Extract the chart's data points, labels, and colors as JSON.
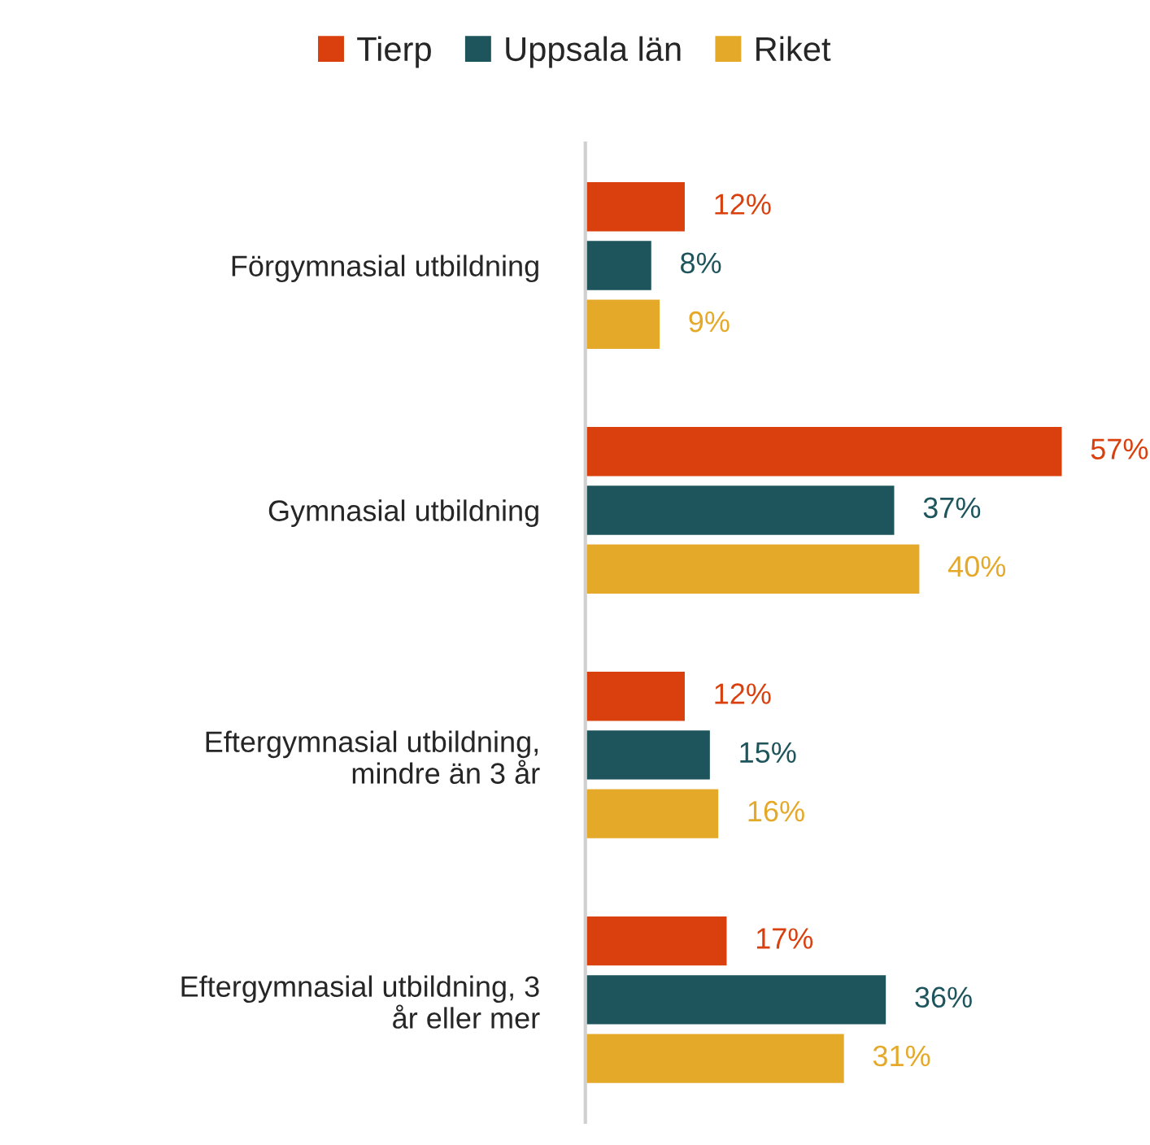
{
  "chart_data": {
    "type": "bar",
    "orientation": "horizontal",
    "legend": "top",
    "grid": false,
    "categories": [
      "Förgymnasial utbildning",
      "Gymnasial utbildning",
      "Eftergymnasial utbildning, mindre än 3 år",
      "Eftergymnasial utbildning, 3 år eller mer"
    ],
    "series": [
      {
        "name": "Tierp",
        "color": "#d9400e",
        "values": [
          12,
          57,
          12,
          17
        ],
        "value_labels": [
          "12%",
          "57%",
          "12%",
          "17%"
        ]
      },
      {
        "name": "Uppsala län",
        "color": "#1e555c",
        "values": [
          8,
          37,
          15,
          36
        ],
        "value_labels": [
          "8%",
          "37%",
          "15%",
          "36%"
        ]
      },
      {
        "name": "Riket",
        "color": "#e5a92a",
        "values": [
          9,
          40,
          16,
          31
        ],
        "value_labels": [
          "9%",
          "40%",
          "16%",
          "31%"
        ]
      }
    ]
  }
}
